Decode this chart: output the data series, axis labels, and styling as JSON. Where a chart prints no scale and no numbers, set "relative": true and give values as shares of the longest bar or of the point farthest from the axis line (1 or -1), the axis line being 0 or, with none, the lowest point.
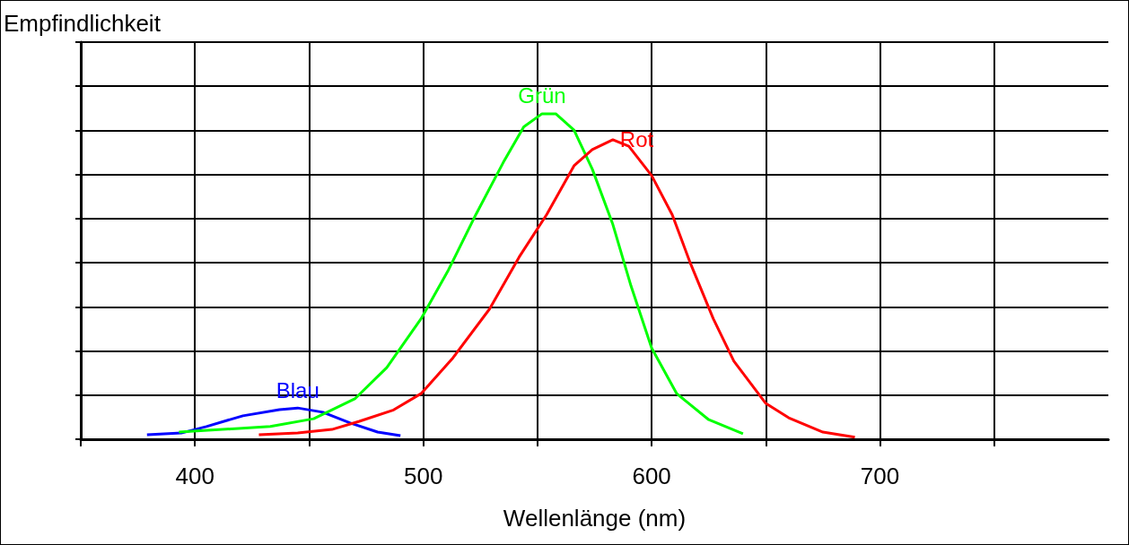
{
  "chart_data": {
    "type": "line",
    "relative": true,
    "xlabel": "Wellenlänge (nm)",
    "ylabel": "Empfindlichkeit",
    "xlim": [
      350,
      800
    ],
    "xticks": [
      {
        "value": 350,
        "label": null
      },
      400,
      {
        "value": 450,
        "label": null
      },
      500,
      {
        "value": 550,
        "label": null
      },
      600,
      {
        "value": 650,
        "label": null
      },
      700,
      {
        "value": 750,
        "label": null
      }
    ],
    "grid": true,
    "legend": false,
    "marker": "none",
    "line_style": "solid",
    "series": [
      {
        "name": "Blau",
        "color": "#0000ff",
        "x": [
          379,
          394,
          405,
          421,
          437,
          445,
          456,
          468,
          480,
          490
        ],
        "values": [
          0.014,
          0.019,
          0.039,
          0.072,
          0.091,
          0.096,
          0.083,
          0.05,
          0.022,
          0.011
        ]
      },
      {
        "name": "Grün",
        "color": "#00ff00",
        "x": [
          393,
          433,
          452,
          470,
          484,
          499,
          511,
          523,
          535,
          544,
          552,
          558,
          566,
          574,
          583,
          591,
          600,
          611,
          625,
          640
        ],
        "values": [
          0.022,
          0.039,
          0.063,
          0.124,
          0.22,
          0.37,
          0.52,
          0.69,
          0.85,
          0.96,
          1.0,
          1.0,
          0.95,
          0.83,
          0.66,
          0.47,
          0.28,
          0.14,
          0.06,
          0.017
        ]
      },
      {
        "name": "Rot",
        "color": "#ff0000",
        "x": [
          428,
          445,
          460,
          472,
          487,
          499,
          513,
          529,
          542,
          554,
          566,
          574,
          583,
          590,
          600,
          609,
          617,
          627,
          636,
          650,
          660,
          675,
          689
        ],
        "values": [
          0.014,
          0.019,
          0.03,
          0.055,
          0.09,
          0.14,
          0.25,
          0.4,
          0.56,
          0.69,
          0.84,
          0.89,
          0.92,
          0.9,
          0.81,
          0.69,
          0.54,
          0.37,
          0.24,
          0.11,
          0.066,
          0.022,
          0.006
        ]
      }
    ]
  }
}
